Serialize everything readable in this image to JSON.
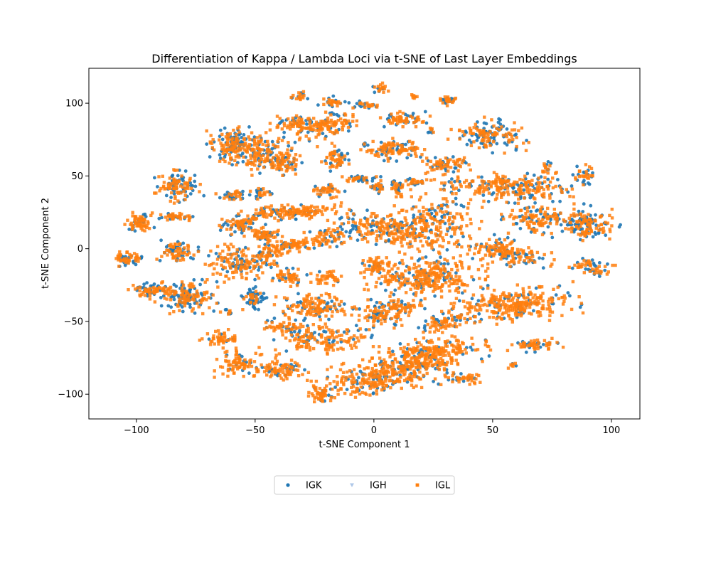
{
  "chart_data": {
    "type": "scatter",
    "title": "Differentiation of Kappa / Lambda Loci via t-SNE of Last Layer Embeddings",
    "xlabel": "t-SNE Component 1",
    "ylabel": "t-SNE Component 2",
    "xlim": [
      -120,
      112
    ],
    "ylim": [
      -117,
      124
    ],
    "xticks": [
      -100,
      -50,
      0,
      50,
      100
    ],
    "yticks": [
      -100,
      -50,
      0,
      50,
      100
    ],
    "grid": false,
    "legend_position": "bottom-center",
    "series": [
      {
        "name": "IGK",
        "color": "#1f77b4",
        "marker": "circle"
      },
      {
        "name": "IGH",
        "color": "#aec7e8",
        "marker": "triangle-down"
      },
      {
        "name": "IGL",
        "color": "#ff7f0e",
        "marker": "square"
      }
    ],
    "clusters": [
      {
        "cx": -104,
        "cy": -7,
        "rx": 5,
        "ry": 4,
        "tilt": 0,
        "mix": 0.45,
        "n": 60
      },
      {
        "cx": -99,
        "cy": 18,
        "rx": 5,
        "ry": 6,
        "tilt": 0,
        "mix": 0.35,
        "n": 70
      },
      {
        "cx": -82,
        "cy": 43,
        "rx": 8,
        "ry": 9,
        "tilt": 0,
        "mix": 0.5,
        "n": 120
      },
      {
        "cx": -83,
        "cy": 22,
        "rx": 6,
        "ry": 2,
        "tilt": 0,
        "mix": 0.35,
        "n": 40
      },
      {
        "cx": -83,
        "cy": -2,
        "rx": 7,
        "ry": 6,
        "tilt": 0,
        "mix": 0.5,
        "n": 80
      },
      {
        "cx": -93,
        "cy": -28,
        "rx": 8,
        "ry": 4,
        "tilt": 0,
        "mix": 0.45,
        "n": 70
      },
      {
        "cx": -80,
        "cy": -33,
        "rx": 11,
        "ry": 9,
        "tilt": 0,
        "mix": 0.45,
        "n": 160
      },
      {
        "cx": -60,
        "cy": 72,
        "rx": 8,
        "ry": 9,
        "tilt": 0,
        "mix": 0.4,
        "n": 120
      },
      {
        "cx": -48,
        "cy": 65,
        "rx": 13,
        "ry": 12,
        "tilt": 0,
        "mix": 0.35,
        "n": 200
      },
      {
        "cx": -37,
        "cy": 59,
        "rx": 6,
        "ry": 5,
        "tilt": 0,
        "mix": 0.3,
        "n": 50
      },
      {
        "cx": -56,
        "cy": 17,
        "rx": 8,
        "ry": 7,
        "tilt": 0,
        "mix": 0.3,
        "n": 90
      },
      {
        "cx": -60,
        "cy": 37,
        "rx": 5,
        "ry": 3,
        "tilt": 0,
        "mix": 0.4,
        "n": 35
      },
      {
        "cx": -48,
        "cy": 38,
        "rx": 4,
        "ry": 3,
        "tilt": 0,
        "mix": 0.4,
        "n": 30
      },
      {
        "cx": -35,
        "cy": 25,
        "rx": 19,
        "ry": 4,
        "tilt": 0.1,
        "mix": 0.25,
        "n": 160
      },
      {
        "cx": -45,
        "cy": 9,
        "rx": 6,
        "ry": 4,
        "tilt": 0,
        "mix": 0.3,
        "n": 50
      },
      {
        "cx": -58,
        "cy": -10,
        "rx": 10,
        "ry": 10,
        "tilt": 0,
        "mix": 0.35,
        "n": 140
      },
      {
        "cx": -45,
        "cy": -5,
        "rx": 5,
        "ry": 6,
        "tilt": 0,
        "mix": 0.3,
        "n": 50
      },
      {
        "cx": -51,
        "cy": -34,
        "rx": 5,
        "ry": 6,
        "tilt": 0,
        "mix": 0.55,
        "n": 60
      },
      {
        "cx": -62,
        "cy": -44,
        "rx": 2,
        "ry": 2,
        "tilt": 0,
        "mix": 0.5,
        "n": 10
      },
      {
        "cx": -35,
        "cy": 2,
        "rx": 10,
        "ry": 4,
        "tilt": 0.2,
        "mix": 0.2,
        "n": 90
      },
      {
        "cx": -36,
        "cy": -20,
        "rx": 6,
        "ry": 5,
        "tilt": 0,
        "mix": 0.25,
        "n": 50
      },
      {
        "cx": -19,
        "cy": 9,
        "rx": 8,
        "ry": 6,
        "tilt": 0,
        "mix": 0.25,
        "n": 70
      },
      {
        "cx": -20,
        "cy": -20,
        "rx": 5,
        "ry": 4,
        "tilt": 0,
        "mix": 0.25,
        "n": 40
      },
      {
        "cx": -25,
        "cy": -40,
        "rx": 13,
        "ry": 7,
        "tilt": 0,
        "mix": 0.25,
        "n": 140
      },
      {
        "cx": -38,
        "cy": -53,
        "rx": 8,
        "ry": 4,
        "tilt": 0,
        "mix": 0.3,
        "n": 50
      },
      {
        "cx": -20,
        "cy": -62,
        "rx": 17,
        "ry": 8,
        "tilt": 0.1,
        "mix": 0.2,
        "n": 160
      },
      {
        "cx": -65,
        "cy": -62,
        "rx": 7,
        "ry": 5,
        "tilt": 0,
        "mix": 0.15,
        "n": 50
      },
      {
        "cx": -57,
        "cy": -78,
        "rx": 8,
        "ry": 8,
        "tilt": 0,
        "mix": 0.2,
        "n": 80
      },
      {
        "cx": -40,
        "cy": -83,
        "rx": 11,
        "ry": 6,
        "tilt": 0,
        "mix": 0.2,
        "n": 90
      },
      {
        "cx": -32,
        "cy": 85,
        "rx": 9,
        "ry": 5,
        "tilt": 0,
        "mix": 0.25,
        "n": 80
      },
      {
        "cx": -18,
        "cy": 85,
        "rx": 10,
        "ry": 7,
        "tilt": 0.2,
        "mix": 0.25,
        "n": 110
      },
      {
        "cx": -31,
        "cy": 104,
        "rx": 3,
        "ry": 3,
        "tilt": 0,
        "mix": 0.4,
        "n": 20
      },
      {
        "cx": -17,
        "cy": 101,
        "rx": 5,
        "ry": 3,
        "tilt": 0,
        "mix": 0.35,
        "n": 30
      },
      {
        "cx": -3,
        "cy": 99,
        "rx": 5,
        "ry": 2,
        "tilt": 0,
        "mix": 0.3,
        "n": 25
      },
      {
        "cx": 3,
        "cy": 110,
        "rx": 3,
        "ry": 3,
        "tilt": 0,
        "mix": 0.35,
        "n": 20
      },
      {
        "cx": -16,
        "cy": 62,
        "rx": 6,
        "ry": 8,
        "tilt": 0,
        "mix": 0.25,
        "n": 60
      },
      {
        "cx": -20,
        "cy": 40,
        "rx": 6,
        "ry": 4,
        "tilt": 0,
        "mix": 0.3,
        "n": 40
      },
      {
        "cx": -7,
        "cy": 48,
        "rx": 5,
        "ry": 2,
        "tilt": 0,
        "mix": 0.6,
        "n": 30
      },
      {
        "cx": 8,
        "cy": 68,
        "rx": 12,
        "ry": 6,
        "tilt": 0,
        "mix": 0.3,
        "n": 120
      },
      {
        "cx": 12,
        "cy": 89,
        "rx": 9,
        "ry": 4,
        "tilt": 0,
        "mix": 0.35,
        "n": 70
      },
      {
        "cx": 1,
        "cy": 43,
        "rx": 3,
        "ry": 5,
        "tilt": 0,
        "mix": 0.4,
        "n": 35
      },
      {
        "cx": 10,
        "cy": 42,
        "rx": 3,
        "ry": 5,
        "tilt": 0,
        "mix": 0.4,
        "n": 35
      },
      {
        "cx": 19,
        "cy": 46,
        "rx": 5,
        "ry": 2,
        "tilt": 0,
        "mix": 0.3,
        "n": 25
      },
      {
        "cx": 31,
        "cy": 58,
        "rx": 9,
        "ry": 5,
        "tilt": 0.2,
        "mix": 0.3,
        "n": 80
      },
      {
        "cx": 32,
        "cy": 102,
        "rx": 5,
        "ry": 3,
        "tilt": 0,
        "mix": 0.3,
        "n": 30
      },
      {
        "cx": 17,
        "cy": 105,
        "rx": 2,
        "ry": 2,
        "tilt": 0,
        "mix": 0.4,
        "n": 8
      },
      {
        "cx": 24,
        "cy": 81,
        "rx": 2,
        "ry": 2,
        "tilt": 0,
        "mix": 0.4,
        "n": 8
      },
      {
        "cx": 49,
        "cy": 78,
        "rx": 13,
        "ry": 9,
        "tilt": -0.2,
        "mix": 0.35,
        "n": 150
      },
      {
        "cx": 2,
        "cy": 14,
        "rx": 17,
        "ry": 8,
        "tilt": -0.3,
        "mix": 0.35,
        "n": 170
      },
      {
        "cx": 1,
        "cy": -12,
        "rx": 6,
        "ry": 5,
        "tilt": 0,
        "mix": 0.25,
        "n": 50
      },
      {
        "cx": 24,
        "cy": 17,
        "rx": 15,
        "ry": 18,
        "tilt": -0.5,
        "mix": 0.25,
        "n": 260
      },
      {
        "cx": 22,
        "cy": -20,
        "rx": 20,
        "ry": 12,
        "tilt": 0,
        "mix": 0.2,
        "n": 320
      },
      {
        "cx": 12,
        "cy": -40,
        "rx": 8,
        "ry": 4,
        "tilt": 0,
        "mix": 0.25,
        "n": 50
      },
      {
        "cx": 3,
        "cy": -45,
        "rx": 10,
        "ry": 8,
        "tilt": 0.1,
        "mix": 0.3,
        "n": 100
      },
      {
        "cx": 30,
        "cy": -50,
        "rx": 10,
        "ry": 6,
        "tilt": 0.5,
        "mix": 0.25,
        "n": 80
      },
      {
        "cx": 57,
        "cy": 42,
        "rx": 22,
        "ry": 8,
        "tilt": -0.1,
        "mix": 0.3,
        "n": 260
      },
      {
        "cx": 73,
        "cy": 55,
        "rx": 3,
        "ry": 5,
        "tilt": 0,
        "mix": 0.3,
        "n": 20
      },
      {
        "cx": 89,
        "cy": 50,
        "rx": 4,
        "ry": 6,
        "tilt": 0,
        "mix": 0.35,
        "n": 35
      },
      {
        "cx": 68,
        "cy": 20,
        "rx": 11,
        "ry": 8,
        "tilt": 0,
        "mix": 0.35,
        "n": 120
      },
      {
        "cx": 89,
        "cy": 17,
        "rx": 11,
        "ry": 10,
        "tilt": -0.3,
        "mix": 0.45,
        "n": 160
      },
      {
        "cx": 56,
        "cy": -2,
        "rx": 16,
        "ry": 7,
        "tilt": -0.35,
        "mix": 0.35,
        "n": 170
      },
      {
        "cx": 92,
        "cy": -12,
        "rx": 7,
        "ry": 5,
        "tilt": -0.3,
        "mix": 0.35,
        "n": 60
      },
      {
        "cx": 60,
        "cy": -38,
        "rx": 21,
        "ry": 10,
        "tilt": 0.1,
        "mix": 0.2,
        "n": 300
      },
      {
        "cx": 68,
        "cy": -66,
        "rx": 9,
        "ry": 4,
        "tilt": 0,
        "mix": 0.25,
        "n": 60
      },
      {
        "cx": 58,
        "cy": -80,
        "rx": 2,
        "ry": 2,
        "tilt": 0,
        "mix": 0.3,
        "n": 8
      },
      {
        "cx": 5,
        "cy": -87,
        "rx": 24,
        "ry": 10,
        "tilt": 0.3,
        "mix": 0.2,
        "n": 350
      },
      {
        "cx": 24,
        "cy": -72,
        "rx": 19,
        "ry": 9,
        "tilt": 0.3,
        "mix": 0.2,
        "n": 260
      },
      {
        "cx": -22,
        "cy": -100,
        "rx": 5,
        "ry": 4,
        "tilt": 0,
        "mix": 0.15,
        "n": 40
      },
      {
        "cx": 38,
        "cy": -89,
        "rx": 6,
        "ry": 4,
        "tilt": 0,
        "mix": 0.25,
        "n": 40
      }
    ]
  }
}
